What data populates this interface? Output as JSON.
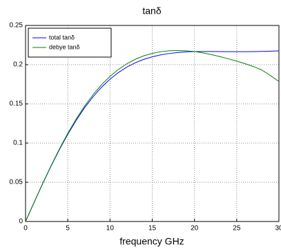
{
  "chart_data": {
    "type": "line",
    "title": "tanδ",
    "xlabel": "frequency GHz",
    "x": [
      0,
      1,
      2,
      3,
      4,
      5,
      6,
      7,
      8,
      9,
      10,
      11,
      12,
      13,
      14,
      15,
      16,
      17,
      18,
      19,
      20,
      21,
      22,
      23,
      24,
      25,
      26,
      27,
      28,
      29,
      30
    ],
    "series": [
      {
        "name": "total tanδ",
        "color": "#0000ff",
        "values": [
          0,
          0.024,
          0.0476,
          0.0702,
          0.0915,
          0.1112,
          0.1291,
          0.1452,
          0.1592,
          0.1713,
          0.1815,
          0.19,
          0.197,
          0.2025,
          0.2068,
          0.21,
          0.2125,
          0.2142,
          0.2155,
          0.2163,
          0.2167,
          0.2168,
          0.2168,
          0.2167,
          0.2166,
          0.2166,
          0.2166,
          0.2167,
          0.2169,
          0.2172,
          0.2175
        ]
      },
      {
        "name": "debye tanδ",
        "color": "#008000",
        "values": [
          0,
          0.0241,
          0.0479,
          0.0707,
          0.0923,
          0.1124,
          0.1308,
          0.1473,
          0.1618,
          0.1744,
          0.1851,
          0.194,
          0.2012,
          0.2069,
          0.2113,
          0.2144,
          0.2165,
          0.2176,
          0.218,
          0.2177,
          0.2168,
          0.215,
          0.2128,
          0.2103,
          0.2075,
          0.2045,
          0.2012,
          0.1975,
          0.193,
          0.186,
          0.1785
        ]
      }
    ],
    "xlim": [
      0,
      30
    ],
    "xticks": [
      0,
      5,
      10,
      15,
      20,
      25,
      30
    ],
    "ylim": [
      0,
      0.25
    ],
    "yticks": [
      0,
      0.05,
      0.1,
      0.15,
      0.2,
      0.25
    ],
    "grid": true,
    "legend": "upper left"
  }
}
